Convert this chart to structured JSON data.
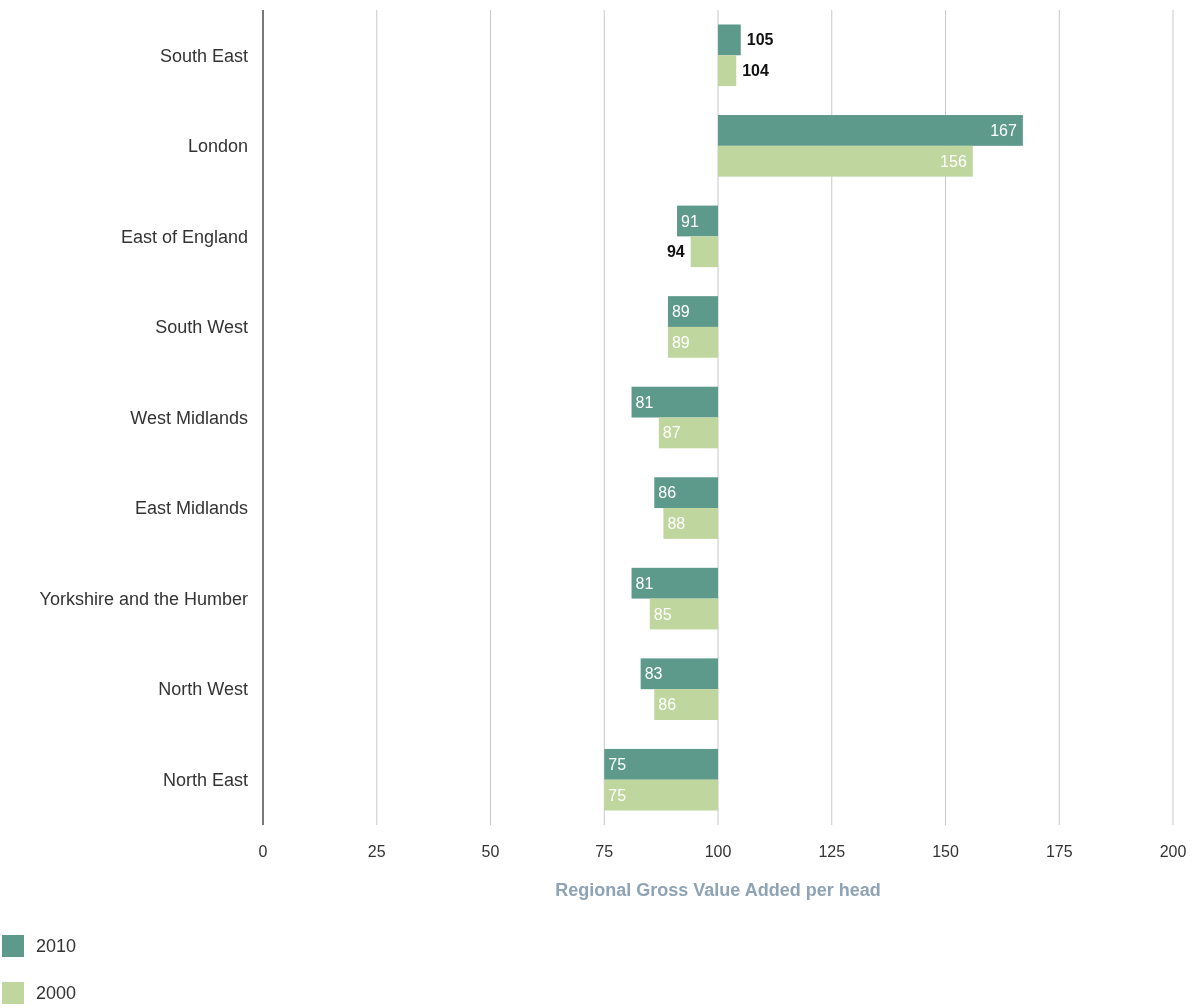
{
  "chart_data": {
    "type": "bar",
    "orientation": "horizontal",
    "xlabel": "Regional Gross Value Added per head",
    "categories": [
      "South East",
      "London",
      "East of England",
      "South West",
      "West Midlands",
      "East Midlands",
      "Yorkshire and the Humber",
      "North West",
      "North East"
    ],
    "series": [
      {
        "name": "2010",
        "color": "#5e9a8b",
        "base": [
          100,
          100,
          100,
          100,
          100,
          100,
          100,
          100,
          100
        ],
        "values": [
          5,
          67,
          -9,
          -11,
          -19,
          -14,
          -19,
          -17,
          -25
        ],
        "value_labels": [
          "105",
          "167",
          "91",
          "89",
          "81",
          "86",
          "81",
          "83",
          "75"
        ]
      },
      {
        "name": "2000",
        "color": "#bfd69f",
        "base": [
          100,
          100,
          100,
          100,
          100,
          100,
          100,
          100,
          100
        ],
        "values": [
          4,
          56,
          -6,
          -11,
          -13,
          -12,
          -15,
          -14,
          -25
        ],
        "value_labels": [
          "104",
          "156",
          "94",
          "89",
          "87",
          "88",
          "85",
          "86",
          "75"
        ]
      }
    ],
    "xlim": [
      0,
      200
    ],
    "xticks": [
      0,
      25,
      50,
      75,
      100,
      125,
      150,
      175,
      200
    ],
    "grid": "x",
    "legend": "bottom left"
  }
}
